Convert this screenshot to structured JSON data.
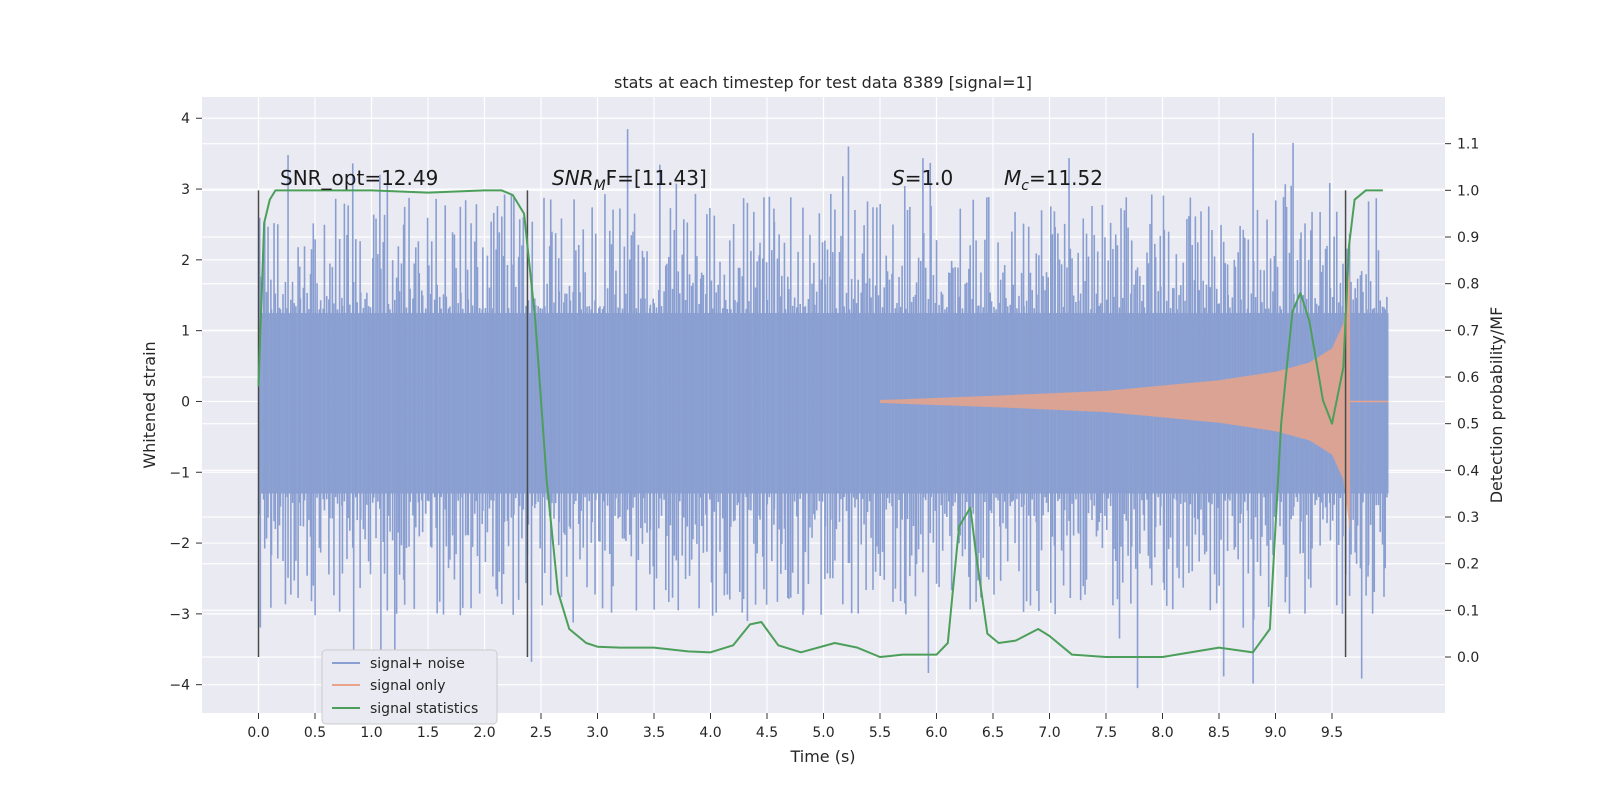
{
  "chart_data": {
    "type": "line",
    "title": "stats at each timestep for test data 8389 [signal=1]",
    "xlabel": "Time (s)",
    "ylabel": "Whitened strain",
    "y2label": "Detection probability/MF",
    "xlim": [
      -0.5,
      10.5
    ],
    "ylim": [
      -4.4,
      4.3
    ],
    "y2lim": [
      -0.12,
      1.2
    ],
    "x_ticks": [
      "0.0",
      "0.5",
      "1.0",
      "1.5",
      "2.0",
      "2.5",
      "3.0",
      "3.5",
      "4.0",
      "4.5",
      "5.0",
      "5.5",
      "6.0",
      "6.5",
      "7.0",
      "7.5",
      "8.0",
      "8.5",
      "9.0",
      "9.5"
    ],
    "y_ticks": [
      "−4",
      "−3",
      "−2",
      "−1",
      "0",
      "1",
      "2",
      "3",
      "4"
    ],
    "y2_ticks": [
      "0.0",
      "0.1",
      "0.2",
      "0.3",
      "0.4",
      "0.5",
      "0.6",
      "0.7",
      "0.8",
      "0.9",
      "1.0",
      "1.1"
    ],
    "grid": true,
    "legend_position": "lower-left",
    "colors": {
      "noise": "#8a9fd1",
      "signal": "#e8a38a",
      "stats": "#4c9f5a",
      "background": "#eaeaf2",
      "grid": "#ffffff",
      "vline": "#4a4a4a"
    },
    "annotations": {
      "snr_opt": "SNR_opt=12.49",
      "snr_mf_italic": "SNR",
      "snr_mf_sub": "M",
      "snr_mf_rest": "F=[11.43]",
      "s_italic": "S",
      "s_rest": "=1.0",
      "mc_italic": "M",
      "mc_sub": "c",
      "mc_rest": "=11.52"
    },
    "vertical_lines_x": [
      0.0,
      2.38,
      9.62
    ],
    "series": [
      {
        "name": "signal+ noise",
        "description_type": "noise band",
        "x_range": [
          0.0,
          10.0
        ],
        "core_range": [
          -1.3,
          1.25
        ],
        "spike_range": [
          -4.05,
          3.95
        ]
      },
      {
        "name": "signal only",
        "description_type": "chirp envelope",
        "x": [
          5.5,
          6.5,
          7.5,
          8.5,
          9.0,
          9.3,
          9.5,
          9.6,
          9.66
        ],
        "amplitude": [
          0.02,
          0.08,
          0.15,
          0.3,
          0.42,
          0.55,
          0.75,
          1.1,
          1.85
        ]
      },
      {
        "name": "signal statistics",
        "axis": "right",
        "x": [
          0.0,
          0.05,
          0.1,
          0.15,
          0.25,
          0.5,
          1.0,
          1.5,
          2.0,
          2.15,
          2.25,
          2.35,
          2.45,
          2.55,
          2.65,
          2.75,
          2.9,
          3.0,
          3.2,
          3.5,
          3.8,
          4.0,
          4.2,
          4.35,
          4.45,
          4.6,
          4.8,
          5.1,
          5.3,
          5.5,
          5.7,
          6.0,
          6.1,
          6.2,
          6.3,
          6.35,
          6.45,
          6.55,
          6.7,
          6.9,
          7.0,
          7.2,
          7.5,
          8.0,
          8.5,
          8.8,
          8.95,
          9.05,
          9.15,
          9.22,
          9.3,
          9.42,
          9.5,
          9.55,
          9.6,
          9.65,
          9.7,
          9.8,
          9.95
        ],
        "values": [
          0.58,
          0.93,
          0.98,
          1.0,
          1.0,
          1.0,
          1.0,
          0.995,
          1.0,
          1.0,
          0.99,
          0.95,
          0.72,
          0.38,
          0.14,
          0.06,
          0.03,
          0.022,
          0.02,
          0.02,
          0.012,
          0.01,
          0.025,
          0.07,
          0.075,
          0.025,
          0.01,
          0.03,
          0.02,
          0.0,
          0.005,
          0.005,
          0.03,
          0.28,
          0.32,
          0.22,
          0.05,
          0.03,
          0.035,
          0.06,
          0.045,
          0.005,
          0.0,
          0.0,
          0.02,
          0.01,
          0.06,
          0.5,
          0.74,
          0.78,
          0.72,
          0.55,
          0.5,
          0.56,
          0.62,
          0.88,
          0.98,
          1.0,
          1.0
        ]
      }
    ],
    "legend": [
      {
        "label": "signal+ noise",
        "color": "#8a9fd1"
      },
      {
        "label": "signal only",
        "color": "#e8a38a"
      },
      {
        "label": "signal statistics",
        "color": "#4c9f5a"
      }
    ]
  }
}
